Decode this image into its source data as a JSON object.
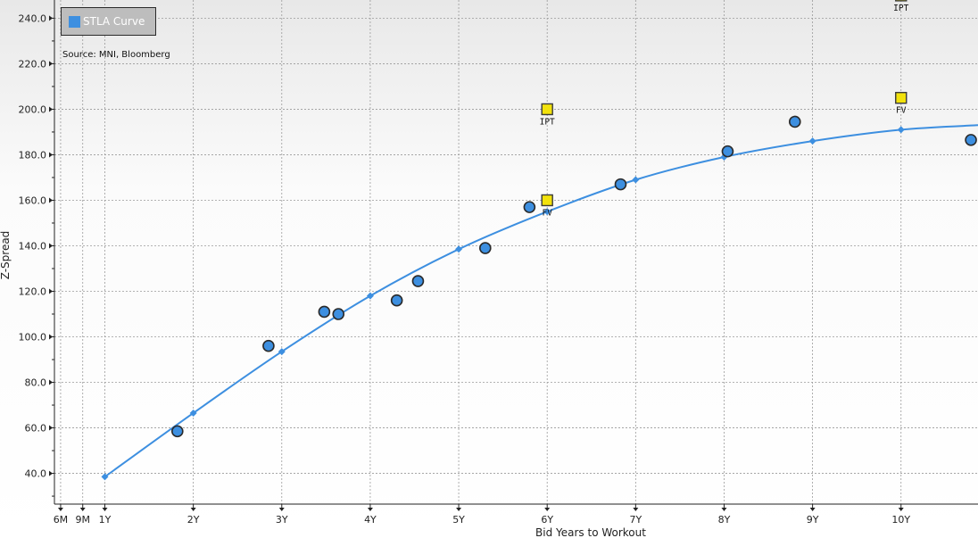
{
  "colors": {
    "curve": "#3d8fe0",
    "marker": "#3d8fe0",
    "marker_stroke": "#2a2a2a",
    "quote_fill": "#f2e20c",
    "quote_stroke": "#3a3a3a",
    "grid": "#9a9a9a",
    "legend_bg": "#bdbdbd"
  },
  "legend": {
    "label": "STLA Curve",
    "icon": "square-swatch-icon"
  },
  "source_note": "Source: MNI, Bloomberg",
  "chart_data": {
    "type": "scatter",
    "xlabel": "Bid Years to Workout",
    "ylabel": "Z-Spread",
    "xlim": [
      0.43,
      10.87
    ],
    "ylim": [
      26.5,
      248
    ],
    "grid": true,
    "legend_position": "top-left",
    "x_ticks": [
      {
        "value": 0.5,
        "label": "6M"
      },
      {
        "value": 0.75,
        "label": "9M"
      },
      {
        "value": 1,
        "label": "1Y"
      },
      {
        "value": 2,
        "label": "2Y"
      },
      {
        "value": 3,
        "label": "3Y"
      },
      {
        "value": 4,
        "label": "4Y"
      },
      {
        "value": 5,
        "label": "5Y"
      },
      {
        "value": 6,
        "label": "6Y"
      },
      {
        "value": 7,
        "label": "7Y"
      },
      {
        "value": 8,
        "label": "8Y"
      },
      {
        "value": 9,
        "label": "9Y"
      },
      {
        "value": 10,
        "label": "10Y"
      }
    ],
    "y_ticks": [
      {
        "value": 40,
        "label": "40.0"
      },
      {
        "value": 60,
        "label": "60.0"
      },
      {
        "value": 80,
        "label": "80.0"
      },
      {
        "value": 100,
        "label": "100.0"
      },
      {
        "value": 120,
        "label": "120.0"
      },
      {
        "value": 140,
        "label": "140.0"
      },
      {
        "value": 160,
        "label": "160.0"
      },
      {
        "value": 180,
        "label": "180.0"
      },
      {
        "value": 200,
        "label": "200.0"
      },
      {
        "value": 220,
        "label": "220.0"
      },
      {
        "value": 240,
        "label": "240.0"
      }
    ],
    "curve": {
      "name": "STLA Curve",
      "points": [
        [
          1,
          38.5
        ],
        [
          2,
          66.5
        ],
        [
          3,
          93.5
        ],
        [
          4,
          118
        ],
        [
          5,
          138.5
        ],
        [
          6,
          155
        ],
        [
          7,
          169
        ],
        [
          8,
          179
        ],
        [
          9,
          186
        ],
        [
          10,
          191
        ],
        [
          10.87,
          193
        ]
      ],
      "markers": [
        [
          1,
          38.5
        ],
        [
          2,
          66.5
        ],
        [
          3,
          93.5
        ],
        [
          4,
          118
        ],
        [
          5,
          138.5
        ],
        [
          6,
          155
        ],
        [
          7,
          169
        ],
        [
          8,
          179
        ],
        [
          9,
          186
        ],
        [
          10,
          191
        ]
      ]
    },
    "bonds": [
      [
        1.82,
        58.5
      ],
      [
        2.85,
        96
      ],
      [
        3.48,
        111
      ],
      [
        3.64,
        110
      ],
      [
        4.3,
        116
      ],
      [
        4.54,
        124.5
      ],
      [
        5.3,
        139
      ],
      [
        5.8,
        157
      ],
      [
        6.83,
        167
      ],
      [
        8.04,
        181.5
      ],
      [
        8.8,
        194.5
      ],
      [
        10.79,
        186.5
      ]
    ],
    "new_issues": [
      {
        "x": 6,
        "y": 200,
        "label": "IPT"
      },
      {
        "x": 6,
        "y": 160,
        "label": "FV"
      },
      {
        "x": 10,
        "y": 250,
        "label": "IPT"
      },
      {
        "x": 10,
        "y": 205,
        "label": "FV"
      }
    ]
  }
}
